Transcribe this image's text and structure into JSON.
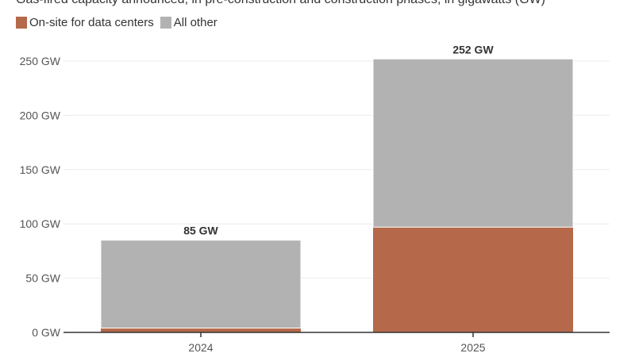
{
  "chart_data": {
    "type": "bar",
    "stacked": true,
    "subtitle": "Gas-fired capacity announced, in pre-construction and construction phases, in gigawatts (GW)",
    "categories": [
      "2024",
      "2025"
    ],
    "series": [
      {
        "name": "On-site for data centers",
        "values": [
          4,
          97
        ],
        "color": "#b5694a"
      },
      {
        "name": "All other",
        "values": [
          81,
          155
        ],
        "color": "#b2b2b2"
      }
    ],
    "totals": [
      85,
      252
    ],
    "total_labels": [
      "85 GW",
      "252 GW"
    ],
    "y_ticks": [
      0,
      50,
      100,
      150,
      200,
      250
    ],
    "y_tick_labels": [
      "0 GW",
      "50 GW",
      "100 GW",
      "150 GW",
      "200 GW",
      "250 GW"
    ],
    "ylim": [
      0,
      250
    ],
    "grid": true,
    "legend_position": "top-left"
  }
}
